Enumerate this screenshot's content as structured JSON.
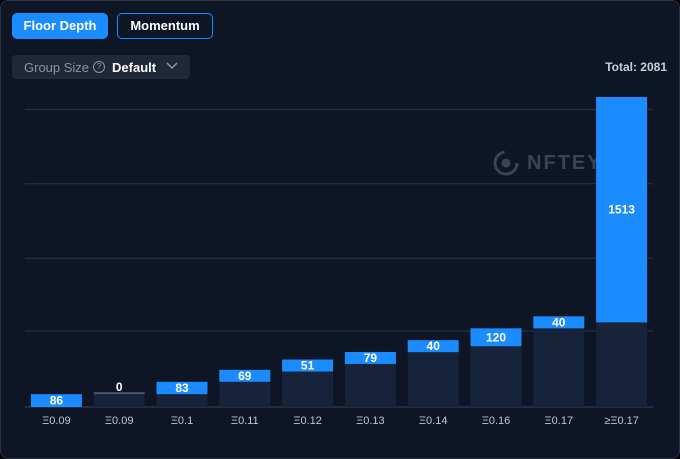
{
  "tabs": {
    "floor_depth": "Floor Depth",
    "momentum": "Momentum"
  },
  "group_size": {
    "label": "Group Size",
    "help": "?",
    "value": "Default",
    "chevron": "chevron-down-icon"
  },
  "total": "Total: 2081",
  "watermark": "NFTEYE",
  "colors": {
    "accent": "#1a8cff",
    "background": "#0e1525",
    "bar_dark": "#16233a"
  },
  "chart_data": {
    "type": "bar",
    "categories": [
      "Ξ0.09",
      "Ξ0.09",
      "Ξ0.1",
      "Ξ0.11",
      "Ξ0.12",
      "Ξ0.13",
      "Ξ0.14",
      "Ξ0.16",
      "Ξ0.17",
      "≥Ξ0.17"
    ],
    "series": [
      {
        "values": [
          86,
          0,
          83,
          69,
          51,
          79,
          40,
          120,
          40,
          1513
        ]
      }
    ],
    "cumulative": [
      86,
      86,
      169,
      238,
      289,
      368,
      408,
      528,
      568,
      2081
    ],
    "ylim": [
      0,
      2081
    ],
    "grid": true
  }
}
